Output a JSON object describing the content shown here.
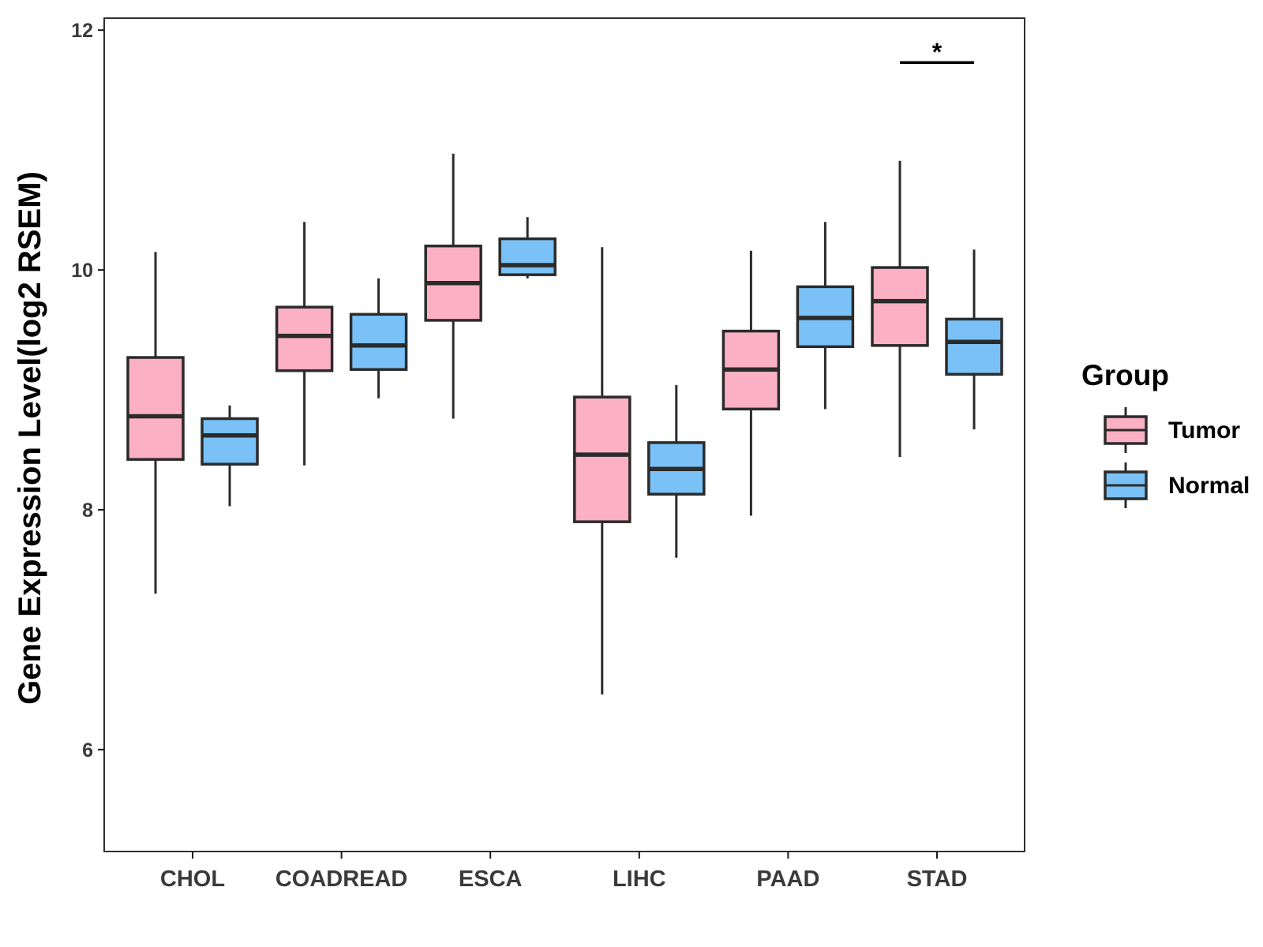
{
  "chart_data": {
    "type": "boxplot",
    "title": "",
    "xlabel": "",
    "ylabel": "Gene Expression Level(log2 RSEM)",
    "ylim": [
      5.15,
      12.1
    ],
    "yticks": [
      6,
      8,
      10,
      12
    ],
    "grid": false,
    "legend": {
      "title": "Group",
      "position": "right",
      "entries": [
        {
          "name": "Tumor",
          "color": "#fbb1c3"
        },
        {
          "name": "Normal",
          "color": "#79c1f6"
        }
      ]
    },
    "categories": [
      "CHOL",
      "COADREAD",
      "ESCA",
      "LIHC",
      "PAAD",
      "STAD"
    ],
    "series": [
      {
        "name": "Tumor",
        "color": "#fbb1c3",
        "boxes": [
          {
            "min": 7.3,
            "q1": 8.42,
            "median": 8.78,
            "q3": 9.27,
            "max": 10.15
          },
          {
            "min": 8.37,
            "q1": 9.16,
            "median": 9.45,
            "q3": 9.69,
            "max": 10.4
          },
          {
            "min": 8.76,
            "q1": 9.58,
            "median": 9.89,
            "q3": 10.2,
            "max": 10.97
          },
          {
            "min": 6.46,
            "q1": 7.9,
            "median": 8.46,
            "q3": 8.94,
            "max": 10.19
          },
          {
            "min": 7.95,
            "q1": 8.84,
            "median": 9.17,
            "q3": 9.49,
            "max": 10.16
          },
          {
            "min": 8.44,
            "q1": 9.37,
            "median": 9.74,
            "q3": 10.02,
            "max": 10.91
          }
        ]
      },
      {
        "name": "Normal",
        "color": "#79c1f6",
        "boxes": [
          {
            "min": 8.03,
            "q1": 8.38,
            "median": 8.62,
            "q3": 8.76,
            "max": 8.87
          },
          {
            "min": 8.93,
            "q1": 9.17,
            "median": 9.37,
            "q3": 9.63,
            "max": 9.93
          },
          {
            "min": 9.93,
            "q1": 9.96,
            "median": 10.04,
            "q3": 10.26,
            "max": 10.44
          },
          {
            "min": 7.6,
            "q1": 8.13,
            "median": 8.34,
            "q3": 8.56,
            "max": 9.04
          },
          {
            "min": 8.84,
            "q1": 9.36,
            "median": 9.6,
            "q3": 9.86,
            "max": 10.4
          },
          {
            "min": 8.67,
            "q1": 9.13,
            "median": 9.4,
            "q3": 9.59,
            "max": 10.17
          }
        ]
      }
    ],
    "annotations": [
      {
        "category": "STAD",
        "label": "*",
        "y": 11.73
      }
    ]
  }
}
